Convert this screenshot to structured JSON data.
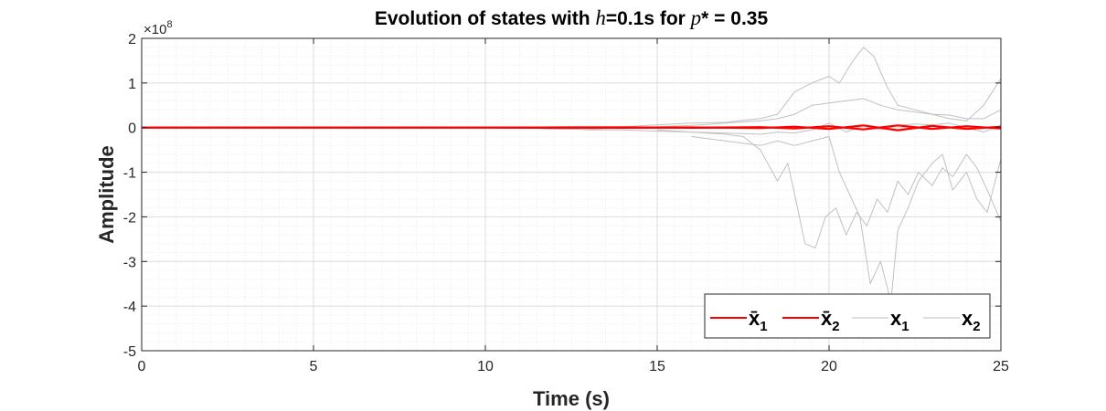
{
  "chart_data": {
    "type": "line",
    "title_prefix": "Evolution of states with ",
    "title_var_h": "h",
    "title_mid": "=0.1s for ",
    "title_var_p": "p",
    "title_suffix": "* = 0.35",
    "xlabel": "Time (s)",
    "ylabel": "Amplitude",
    "y_multiplier_label": "×10",
    "y_multiplier_exp": "8",
    "xlim": [
      0,
      25
    ],
    "ylim": [
      -5,
      2
    ],
    "xticks": [
      0,
      5,
      10,
      15,
      20,
      25
    ],
    "xtick_labels": [
      "0",
      "5",
      "10",
      "15",
      "20",
      "25"
    ],
    "yticks": [
      2,
      1,
      0,
      -1,
      -2,
      -3,
      -4,
      -5
    ],
    "ytick_labels": [
      "2",
      "1",
      "0",
      "-1",
      "-2",
      "-3",
      "-4",
      "-5"
    ],
    "grid": true,
    "minor_grid": true,
    "legend_placement": "bottom-right",
    "legend": [
      {
        "base": "x̄",
        "sub": "1",
        "color": "#ff0000"
      },
      {
        "base": "x̄",
        "sub": "2",
        "color": "#ff0000"
      },
      {
        "base": "x",
        "sub": "1",
        "color": "#bdbdbd"
      },
      {
        "base": "x",
        "sub": "2",
        "color": "#bdbdbd"
      }
    ],
    "series": [
      {
        "color": "#ff0000",
        "width": 2.2,
        "x": [
          0,
          5,
          10,
          12,
          14,
          16,
          18,
          19,
          20,
          21,
          22,
          23,
          24,
          25
        ],
        "y": [
          0,
          0,
          0,
          0.003,
          -0.004,
          0.004,
          -0.01,
          0.02,
          -0.03,
          0.05,
          -0.06,
          0.04,
          -0.03,
          0.02
        ]
      },
      {
        "color": "#ff0000",
        "width": 2.2,
        "x": [
          0,
          5,
          10,
          12,
          14,
          16,
          18,
          19,
          20,
          21,
          22,
          23,
          24,
          25
        ],
        "y": [
          0,
          0,
          0,
          -0.003,
          0.004,
          -0.004,
          0.01,
          -0.02,
          0.03,
          -0.04,
          0.05,
          -0.03,
          0.03,
          -0.02
        ]
      },
      {
        "color": "#c0c0c0",
        "width": 1,
        "x": [
          11,
          12,
          13,
          14,
          15,
          16,
          17,
          18,
          18.5,
          19,
          19.5,
          20,
          20.3,
          20.7,
          21,
          21.3,
          21.7,
          22,
          22.5,
          23,
          23.5,
          24,
          24.5,
          25
        ],
        "y": [
          0,
          0.02,
          0.03,
          0.02,
          0.06,
          0.1,
          0.12,
          0.2,
          0.3,
          0.8,
          1.0,
          1.15,
          1.0,
          1.5,
          1.8,
          1.6,
          0.9,
          0.5,
          0.4,
          0.3,
          0.2,
          0.15,
          0.5,
          1.1
        ]
      },
      {
        "color": "#c0c0c0",
        "width": 1,
        "x": [
          11,
          12,
          13,
          14,
          15,
          16,
          17,
          18,
          18.5,
          19,
          19.5,
          20,
          20.5,
          21,
          21.5,
          22,
          22.5,
          23,
          23.5,
          24,
          24.5,
          25
        ],
        "y": [
          0,
          -0.03,
          -0.04,
          0.01,
          0.02,
          0.05,
          0.1,
          0.15,
          0.2,
          0.3,
          0.5,
          0.55,
          0.6,
          0.65,
          0.5,
          0.4,
          0.35,
          0.3,
          0.28,
          0.2,
          0.2,
          0.4
        ]
      },
      {
        "color": "#c0c0c0",
        "width": 1,
        "x": [
          12,
          13,
          14,
          15,
          16,
          17,
          17.5,
          18,
          18.5,
          18.8,
          19,
          19.3,
          19.6,
          19.9,
          20.2,
          20.5,
          20.8,
          21.1,
          21.4,
          21.7,
          22,
          22.3,
          22.6,
          23,
          23.3,
          23.6,
          24,
          24.3,
          24.6,
          25
        ],
        "y": [
          0,
          -0.05,
          -0.05,
          -0.08,
          -0.1,
          -0.15,
          -0.2,
          -0.5,
          -1.2,
          -0.8,
          -1.5,
          -2.6,
          -2.7,
          -2.0,
          -1.8,
          -2.4,
          -1.9,
          -2.2,
          -1.6,
          -1.9,
          -1.2,
          -1.5,
          -1.0,
          -1.3,
          -0.9,
          -1.1,
          -0.6,
          -0.9,
          -1.4,
          -2.1
        ]
      },
      {
        "color": "#c0c0c0",
        "width": 1,
        "x": [
          16,
          17,
          18,
          18.5,
          19,
          19.5,
          20,
          20.3,
          20.6,
          20.9,
          21.2,
          21.5,
          21.8,
          22,
          22.3,
          22.6,
          23,
          23.3,
          23.6,
          24,
          24.3,
          24.6,
          25
        ],
        "y": [
          -0.2,
          -0.3,
          -0.4,
          -0.3,
          -0.4,
          -0.3,
          -0.2,
          -1.0,
          -1.5,
          -2.0,
          -3.5,
          -3.0,
          -3.9,
          -2.3,
          -1.8,
          -1.2,
          -0.8,
          -0.6,
          -1.4,
          -1.0,
          -1.6,
          -1.9,
          -0.7
        ]
      },
      {
        "color": "#c0c0c0",
        "width": 1,
        "x": [
          15,
          16,
          17,
          18,
          18.5,
          19,
          19.5,
          20,
          20.5,
          21,
          21.5,
          22,
          22.5,
          23,
          23.5,
          24,
          24.5,
          25
        ],
        "y": [
          -0.05,
          -0.1,
          -0.12,
          -0.15,
          -0.1,
          -0.12,
          -0.05,
          0.1,
          -0.1,
          0.05,
          -0.05,
          0.05,
          0.08,
          0.06,
          0.1,
          0.0,
          -0.1,
          0.05
        ]
      }
    ]
  }
}
